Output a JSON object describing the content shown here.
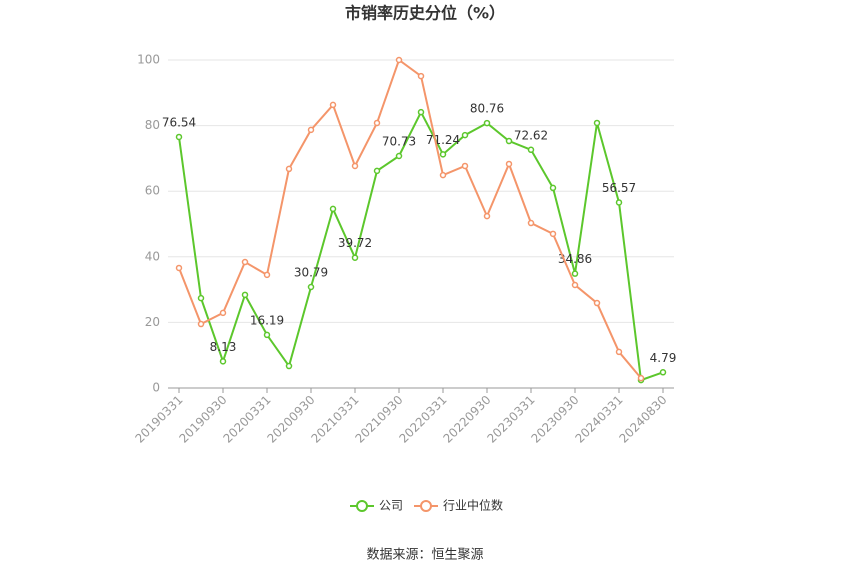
{
  "chart_data": {
    "type": "line",
    "title": "市销率历史分位（%）",
    "categories": [
      "20190331",
      null,
      "20190930",
      null,
      "20200331",
      null,
      "20200930",
      null,
      "20210331",
      null,
      "20210930",
      null,
      "20220331",
      null,
      "20220930",
      null,
      "20230331",
      null,
      "20230930",
      null,
      "20240331",
      null,
      "20240830"
    ],
    "series": [
      {
        "name": "公司",
        "color": "#5cc72c",
        "values": [
          76.54,
          27.4,
          8.13,
          28.4,
          16.19,
          6.7,
          30.79,
          54.6,
          39.72,
          66.2,
          70.73,
          84.1,
          71.24,
          77.1,
          80.76,
          75.3,
          72.62,
          61.0,
          34.86,
          80.8,
          56.57,
          2.4,
          4.79
        ],
        "value_labels": [
          "76.54",
          null,
          "8.13",
          null,
          "16.19",
          null,
          "30.79",
          null,
          "39.72",
          null,
          "70.73",
          null,
          "71.24",
          null,
          "80.76",
          null,
          "72.62",
          null,
          "34.86",
          null,
          "56.57",
          null,
          "4.79"
        ]
      },
      {
        "name": "行业中位数",
        "color": "#f4956a",
        "values": [
          36.6,
          19.5,
          22.9,
          38.4,
          34.5,
          66.8,
          78.7,
          86.3,
          67.7,
          80.8,
          100,
          95.1,
          64.9,
          67.7,
          52.4,
          68.3,
          50.3,
          47.0,
          31.4,
          25.9,
          11.0,
          3.0,
          null
        ]
      }
    ],
    "ylim": [
      0,
      100
    ],
    "yticks": [
      0,
      20,
      40,
      60,
      80,
      100
    ],
    "grid": true,
    "legend": "bottom",
    "source": "数据来源：恒生聚源"
  }
}
